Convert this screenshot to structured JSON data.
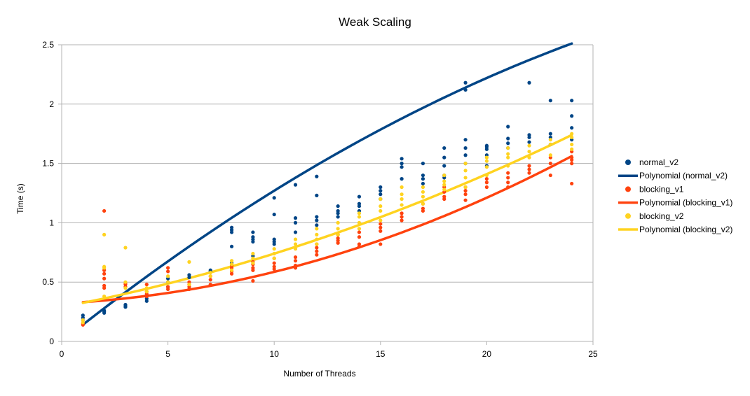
{
  "chart_data": {
    "type": "scatter",
    "title": "Weak Scaling",
    "xlabel": "Number of Threads",
    "ylabel": "Time (s)",
    "xlim": [
      0,
      25
    ],
    "ylim": [
      0,
      2.5
    ],
    "xticks": [
      0,
      5,
      10,
      15,
      20,
      25
    ],
    "yticks": [
      0,
      0.5,
      1,
      1.5,
      2,
      2.5
    ],
    "ytick_labels": [
      "0",
      "0.5",
      "1",
      "1.5",
      "2",
      "2.5"
    ],
    "grid": "horizontal",
    "legend_position": "right",
    "series": [
      {
        "name": "normal_v2",
        "kind": "scatter",
        "color": "#004586",
        "points": [
          [
            1,
            0.18
          ],
          [
            1,
            0.2
          ],
          [
            1,
            0.22
          ],
          [
            2,
            0.24
          ],
          [
            2,
            0.25
          ],
          [
            2,
            0.26
          ],
          [
            3,
            0.29
          ],
          [
            3,
            0.3
          ],
          [
            3,
            0.31
          ],
          [
            4,
            0.34
          ],
          [
            4,
            0.36
          ],
          [
            4,
            0.38
          ],
          [
            5,
            0.46
          ],
          [
            5,
            0.5
          ],
          [
            5,
            0.53
          ],
          [
            6,
            0.54
          ],
          [
            6,
            0.56
          ],
          [
            7,
            0.59
          ],
          [
            7,
            0.6
          ],
          [
            8,
            0.66
          ],
          [
            8,
            0.8
          ],
          [
            8,
            0.92
          ],
          [
            8,
            0.94
          ],
          [
            8,
            0.96
          ],
          [
            9,
            0.72
          ],
          [
            9,
            0.84
          ],
          [
            9,
            0.86
          ],
          [
            9,
            0.88
          ],
          [
            9,
            0.92
          ],
          [
            10,
            0.82
          ],
          [
            10,
            0.84
          ],
          [
            10,
            0.86
          ],
          [
            10,
            1.07
          ],
          [
            10,
            1.21
          ],
          [
            11,
            0.92
          ],
          [
            11,
            1.0
          ],
          [
            11,
            1.04
          ],
          [
            11,
            1.32
          ],
          [
            12,
            0.98
          ],
          [
            12,
            1.02
          ],
          [
            12,
            1.05
          ],
          [
            12,
            1.23
          ],
          [
            12,
            1.39
          ],
          [
            13,
            1.05
          ],
          [
            13,
            1.08
          ],
          [
            13,
            1.1
          ],
          [
            13,
            1.14
          ],
          [
            14,
            1.1
          ],
          [
            14,
            1.14
          ],
          [
            14,
            1.16
          ],
          [
            14,
            1.22
          ],
          [
            15,
            1.2
          ],
          [
            15,
            1.24
          ],
          [
            15,
            1.27
          ],
          [
            15,
            1.3
          ],
          [
            16,
            1.37
          ],
          [
            16,
            1.47
          ],
          [
            16,
            1.5
          ],
          [
            16,
            1.54
          ],
          [
            17,
            1.33
          ],
          [
            17,
            1.37
          ],
          [
            17,
            1.4
          ],
          [
            17,
            1.5
          ],
          [
            18,
            1.38
          ],
          [
            18,
            1.4
          ],
          [
            18,
            1.48
          ],
          [
            18,
            1.55
          ],
          [
            18,
            1.63
          ],
          [
            19,
            1.5
          ],
          [
            19,
            1.57
          ],
          [
            19,
            1.63
          ],
          [
            19,
            1.7
          ],
          [
            19,
            2.12
          ],
          [
            19,
            2.18
          ],
          [
            20,
            1.48
          ],
          [
            20,
            1.57
          ],
          [
            20,
            1.62
          ],
          [
            20,
            1.64
          ],
          [
            20,
            1.65
          ],
          [
            21,
            1.63
          ],
          [
            21,
            1.67
          ],
          [
            21,
            1.71
          ],
          [
            21,
            1.81
          ],
          [
            22,
            1.68
          ],
          [
            22,
            1.72
          ],
          [
            22,
            1.74
          ],
          [
            22,
            2.18
          ],
          [
            23,
            1.66
          ],
          [
            23,
            1.72
          ],
          [
            23,
            1.75
          ],
          [
            23,
            2.03
          ],
          [
            24,
            1.7
          ],
          [
            24,
            1.8
          ],
          [
            24,
            1.9
          ],
          [
            24,
            2.03
          ]
        ]
      },
      {
        "name": "Polynomial (normal_v2)",
        "kind": "trend",
        "color": "#004586",
        "coefficients": [
          0.0,
          0.143,
          -0.0016
        ]
      },
      {
        "name": "blocking_v1",
        "kind": "scatter",
        "color": "#ff420e",
        "points": [
          [
            1,
            0.14
          ],
          [
            1,
            0.15
          ],
          [
            2,
            0.45
          ],
          [
            2,
            0.47
          ],
          [
            2,
            0.53
          ],
          [
            2,
            0.57
          ],
          [
            2,
            0.6
          ],
          [
            2,
            1.1
          ],
          [
            3,
            0.46
          ],
          [
            3,
            0.48
          ],
          [
            3,
            0.49
          ],
          [
            4,
            0.38
          ],
          [
            4,
            0.4
          ],
          [
            4,
            0.42
          ],
          [
            4,
            0.48
          ],
          [
            5,
            0.44
          ],
          [
            5,
            0.46
          ],
          [
            5,
            0.59
          ],
          [
            5,
            0.62
          ],
          [
            6,
            0.44
          ],
          [
            6,
            0.46
          ],
          [
            6,
            0.48
          ],
          [
            6,
            0.5
          ],
          [
            7,
            0.48
          ],
          [
            7,
            0.52
          ],
          [
            7,
            0.55
          ],
          [
            8,
            0.57
          ],
          [
            8,
            0.59
          ],
          [
            8,
            0.62
          ],
          [
            8,
            0.64
          ],
          [
            9,
            0.51
          ],
          [
            9,
            0.6
          ],
          [
            9,
            0.62
          ],
          [
            9,
            0.65
          ],
          [
            9,
            0.67
          ],
          [
            10,
            0.61
          ],
          [
            10,
            0.63
          ],
          [
            10,
            0.66
          ],
          [
            10,
            0.7
          ],
          [
            11,
            0.62
          ],
          [
            11,
            0.64
          ],
          [
            11,
            0.68
          ],
          [
            11,
            0.71
          ],
          [
            12,
            0.73
          ],
          [
            12,
            0.76
          ],
          [
            12,
            0.79
          ],
          [
            12,
            0.82
          ],
          [
            13,
            0.83
          ],
          [
            13,
            0.85
          ],
          [
            13,
            0.87
          ],
          [
            13,
            0.9
          ],
          [
            14,
            0.8
          ],
          [
            14,
            0.82
          ],
          [
            14,
            0.88
          ],
          [
            14,
            0.92
          ],
          [
            15,
            0.82
          ],
          [
            15,
            0.93
          ],
          [
            15,
            0.96
          ],
          [
            15,
            0.99
          ],
          [
            16,
            1.02
          ],
          [
            16,
            1.05
          ],
          [
            16,
            1.08
          ],
          [
            17,
            1.1
          ],
          [
            17,
            1.12
          ],
          [
            17,
            1.16
          ],
          [
            18,
            1.2
          ],
          [
            18,
            1.22
          ],
          [
            18,
            1.26
          ],
          [
            18,
            1.3
          ],
          [
            19,
            1.19
          ],
          [
            19,
            1.24
          ],
          [
            19,
            1.27
          ],
          [
            19,
            1.3
          ],
          [
            20,
            1.3
          ],
          [
            20,
            1.34
          ],
          [
            20,
            1.37
          ],
          [
            21,
            1.3
          ],
          [
            21,
            1.34
          ],
          [
            21,
            1.38
          ],
          [
            21,
            1.42
          ],
          [
            22,
            1.42
          ],
          [
            22,
            1.45
          ],
          [
            22,
            1.48
          ],
          [
            23,
            1.4
          ],
          [
            23,
            1.5
          ],
          [
            23,
            1.55
          ],
          [
            24,
            1.33
          ],
          [
            24,
            1.5
          ],
          [
            24,
            1.53
          ],
          [
            24,
            1.55
          ],
          [
            24,
            1.6
          ]
        ]
      },
      {
        "name": "Polynomial (blocking_v1)",
        "kind": "trend",
        "color": "#ff420e",
        "coefficients": [
          0.321,
          0.0085,
          0.0018
        ]
      },
      {
        "name": "blocking_v2",
        "kind": "scatter",
        "color": "#ffd320",
        "points": [
          [
            1,
            0.16
          ],
          [
            1,
            0.18
          ],
          [
            2,
            0.38
          ],
          [
            2,
            0.62
          ],
          [
            2,
            0.63
          ],
          [
            2,
            0.9
          ],
          [
            3,
            0.45
          ],
          [
            3,
            0.5
          ],
          [
            3,
            0.79
          ],
          [
            4,
            0.42
          ],
          [
            4,
            0.45
          ],
          [
            5,
            0.5
          ],
          [
            5,
            0.55
          ],
          [
            6,
            0.48
          ],
          [
            6,
            0.67
          ],
          [
            7,
            0.55
          ],
          [
            7,
            0.58
          ],
          [
            8,
            0.6
          ],
          [
            8,
            0.65
          ],
          [
            8,
            0.68
          ],
          [
            9,
            0.66
          ],
          [
            9,
            0.7
          ],
          [
            9,
            0.74
          ],
          [
            10,
            0.7
          ],
          [
            10,
            0.74
          ],
          [
            10,
            0.78
          ],
          [
            11,
            0.78
          ],
          [
            11,
            0.82
          ],
          [
            11,
            0.86
          ],
          [
            12,
            0.82
          ],
          [
            12,
            0.86
          ],
          [
            12,
            0.9
          ],
          [
            12,
            0.95
          ],
          [
            13,
            0.9
          ],
          [
            13,
            0.95
          ],
          [
            13,
            1.0
          ],
          [
            14,
            0.95
          ],
          [
            14,
            1.0
          ],
          [
            14,
            1.05
          ],
          [
            14,
            1.08
          ],
          [
            15,
            1.02
          ],
          [
            15,
            1.1
          ],
          [
            15,
            1.14
          ],
          [
            15,
            1.2
          ],
          [
            16,
            1.15
          ],
          [
            16,
            1.2
          ],
          [
            16,
            1.24
          ],
          [
            16,
            1.3
          ],
          [
            17,
            1.16
          ],
          [
            17,
            1.22
          ],
          [
            17,
            1.26
          ],
          [
            17,
            1.3
          ],
          [
            18,
            1.28
          ],
          [
            18,
            1.32
          ],
          [
            18,
            1.35
          ],
          [
            18,
            1.4
          ],
          [
            19,
            1.3
          ],
          [
            19,
            1.38
          ],
          [
            19,
            1.44
          ],
          [
            19,
            1.5
          ],
          [
            20,
            1.4
          ],
          [
            20,
            1.47
          ],
          [
            20,
            1.52
          ],
          [
            20,
            1.55
          ],
          [
            21,
            1.48
          ],
          [
            21,
            1.55
          ],
          [
            21,
            1.58
          ],
          [
            21,
            1.63
          ],
          [
            22,
            1.55
          ],
          [
            22,
            1.6
          ],
          [
            22,
            1.65
          ],
          [
            23,
            1.57
          ],
          [
            23,
            1.66
          ],
          [
            23,
            1.7
          ],
          [
            24,
            1.62
          ],
          [
            24,
            1.66
          ],
          [
            24,
            1.72
          ],
          [
            24,
            1.75
          ]
        ]
      },
      {
        "name": "Polynomial (blocking_v2)",
        "kind": "trend",
        "color": "#ffd320",
        "coefficients": [
          0.29,
          0.034,
          0.0011
        ]
      }
    ]
  }
}
